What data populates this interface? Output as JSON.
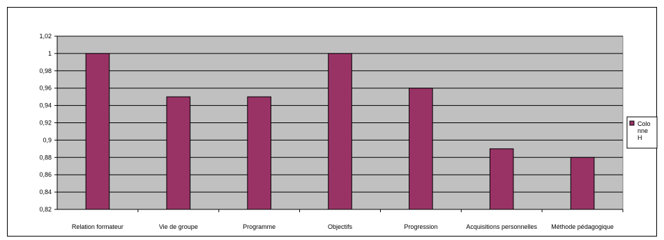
{
  "chart_data": {
    "type": "bar",
    "categories": [
      "Relation formateur",
      "Vie de groupe",
      "Programme",
      "Objectifs",
      "Progression",
      "Acquisitions personnelles",
      "Méthode pédagogique"
    ],
    "series": [
      {
        "name": "Colonne H",
        "values": [
          1,
          0.95,
          0.95,
          1,
          0.96,
          0.89,
          0.88
        ],
        "color": "#993366"
      }
    ],
    "ylim": [
      0.82,
      1.02
    ],
    "yticks": [
      0.82,
      0.84,
      0.86,
      0.88,
      0.9,
      0.92,
      0.94,
      0.96,
      0.98,
      1,
      1.02
    ],
    "ytick_labels": [
      "0,82",
      "0,84",
      "0,86",
      "0,88",
      "0,9",
      "0,92",
      "0,94",
      "0,96",
      "0,98",
      "1",
      "1,02"
    ],
    "grid": true,
    "legend_position": "right",
    "legend_lines": [
      "Colo",
      "nne",
      "H"
    ],
    "plot_background": "#c0c0c0",
    "title": "",
    "xlabel": "",
    "ylabel": ""
  }
}
